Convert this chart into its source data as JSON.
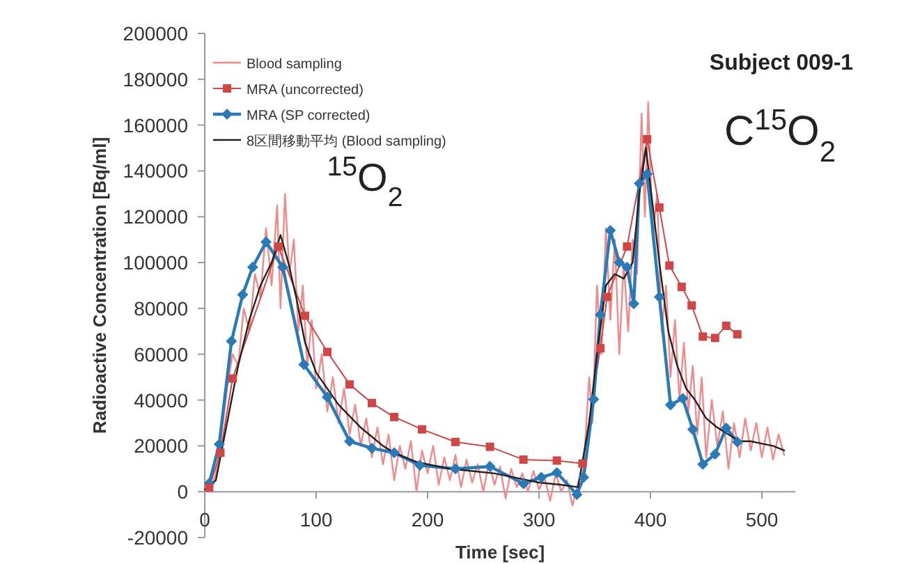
{
  "chart_data": {
    "type": "line",
    "xlabel": "Time [sec]",
    "ylabel": "Radioactive Concentration [Bq/ml]",
    "xlim": [
      0,
      530
    ],
    "xticks": [
      0,
      100,
      200,
      300,
      400,
      500
    ],
    "ylim": [
      -20000,
      200000
    ],
    "yticks": [
      -20000,
      0,
      20000,
      40000,
      60000,
      80000,
      100000,
      120000,
      140000,
      160000,
      180000,
      200000
    ],
    "legend": "top left",
    "grid": false,
    "annotations": [
      "Subject 009-1",
      "$^{15}$O$_{2}$",
      "C$^{15}$O$_{2}$"
    ],
    "series": [
      {
        "name": "Blood sampling",
        "color": "#f08a8a",
        "marker": "none",
        "x": [
          0,
          5,
          10,
          15,
          20,
          25,
          30,
          35,
          40,
          45,
          50,
          55,
          60,
          65,
          68,
          72,
          76,
          80,
          84,
          88,
          92,
          96,
          100,
          105,
          110,
          115,
          120,
          125,
          130,
          135,
          140,
          145,
          150,
          155,
          160,
          165,
          170,
          175,
          180,
          185,
          190,
          195,
          200,
          205,
          210,
          215,
          220,
          225,
          230,
          235,
          240,
          245,
          250,
          255,
          260,
          265,
          270,
          275,
          280,
          285,
          290,
          295,
          300,
          305,
          310,
          315,
          320,
          325,
          330,
          335,
          340,
          345,
          348,
          352,
          356,
          360,
          364,
          368,
          372,
          376,
          380,
          384,
          388,
          392,
          395,
          398,
          402,
          406,
          410,
          414,
          418,
          422,
          426,
          430,
          434,
          438,
          442,
          446,
          450,
          455,
          460,
          465,
          470,
          475,
          480,
          485,
          490,
          495,
          500,
          505,
          510,
          515,
          520
        ],
        "values": [
          2000,
          0,
          8000,
          25000,
          45000,
          60000,
          55000,
          80000,
          70000,
          95000,
          85000,
          115000,
          90000,
          125000,
          80000,
          130000,
          95000,
          110000,
          70000,
          90000,
          55000,
          75000,
          45000,
          60000,
          35000,
          50000,
          30000,
          45000,
          25000,
          38000,
          20000,
          32000,
          15000,
          28000,
          12000,
          25000,
          5000,
          20000,
          10000,
          22000,
          0,
          18000,
          8000,
          20000,
          3000,
          15000,
          5000,
          16000,
          2000,
          14000,
          4000,
          12000,
          0,
          13000,
          3000,
          11000,
          -3000,
          10000,
          2000,
          8000,
          0,
          9000,
          1000,
          6000,
          -4000,
          8000,
          0,
          5000,
          -6000,
          4000,
          10000,
          50000,
          30000,
          90000,
          60000,
          115000,
          75000,
          110000,
          60000,
          100000,
          70000,
          110000,
          95000,
          165000,
          120000,
          170000,
          110000,
          130000,
          70000,
          90000,
          50000,
          75000,
          40000,
          65000,
          35000,
          55000,
          25000,
          50000,
          15000,
          40000,
          20000,
          35000,
          10000,
          30000,
          15000,
          32000,
          18000,
          30000,
          15000,
          28000,
          14000,
          25000,
          16000
        ]
      },
      {
        "name": "MRA (uncorrected)",
        "color": "#d04545",
        "marker": "square",
        "x": [
          4,
          14,
          25,
          66,
          90,
          110,
          130,
          150,
          170,
          195,
          225,
          256,
          286,
          316,
          339,
          355,
          361,
          379,
          397,
          408,
          417,
          428,
          437,
          447,
          458,
          468,
          478
        ],
        "values": [
          1800,
          17000,
          49400,
          107000,
          76800,
          61000,
          46800,
          38700,
          32600,
          27200,
          21700,
          19600,
          14000,
          13600,
          12300,
          62600,
          85000,
          107000,
          153800,
          124000,
          98700,
          89400,
          81300,
          67700,
          67100,
          72400,
          68700
        ]
      },
      {
        "name": "MRA (SP corrected)",
        "color": "#2a7ab8",
        "marker": "diamond",
        "x": [
          4,
          13,
          24,
          34,
          43,
          55,
          70,
          89,
          110,
          130,
          150,
          170,
          193,
          225,
          256,
          286,
          302,
          316,
          334,
          340,
          349,
          355,
          364,
          372,
          379,
          385,
          390,
          397,
          408,
          418,
          429,
          438,
          447,
          458,
          468,
          478
        ],
        "values": [
          3600,
          20700,
          65700,
          86000,
          98000,
          109000,
          98000,
          55500,
          41300,
          22000,
          19000,
          17000,
          11500,
          10000,
          11000,
          3500,
          6300,
          8300,
          -1200,
          6300,
          40300,
          77200,
          114000,
          100000,
          98000,
          82000,
          134500,
          138600,
          85000,
          37900,
          40700,
          27200,
          12000,
          16400,
          27800,
          21700
        ]
      },
      {
        "name": "8区間移動平均 (Blood sampling)",
        "color": "#222222",
        "marker": "none",
        "x": [
          0,
          10,
          20,
          30,
          40,
          50,
          60,
          68,
          75,
          82,
          90,
          100,
          110,
          120,
          130,
          140,
          150,
          160,
          170,
          180,
          190,
          200,
          220,
          240,
          260,
          280,
          300,
          320,
          335,
          345,
          352,
          360,
          368,
          376,
          384,
          390,
          396,
          402,
          408,
          416,
          424,
          432,
          440,
          450,
          460,
          470,
          480,
          490,
          500,
          510,
          520
        ],
        "values": [
          1000,
          5000,
          30000,
          55000,
          75000,
          90000,
          100000,
          112000,
          100000,
          85000,
          65000,
          52000,
          45000,
          38000,
          33000,
          28000,
          24000,
          20000,
          17000,
          15000,
          13000,
          12000,
          10000,
          9000,
          8000,
          6000,
          4000,
          3000,
          2000,
          30000,
          60000,
          90000,
          95000,
          93000,
          100000,
          130000,
          150000,
          125000,
          100000,
          70000,
          55000,
          45000,
          40000,
          32000,
          28000,
          25000,
          22000,
          22000,
          21000,
          20000,
          18000
        ]
      }
    ]
  }
}
